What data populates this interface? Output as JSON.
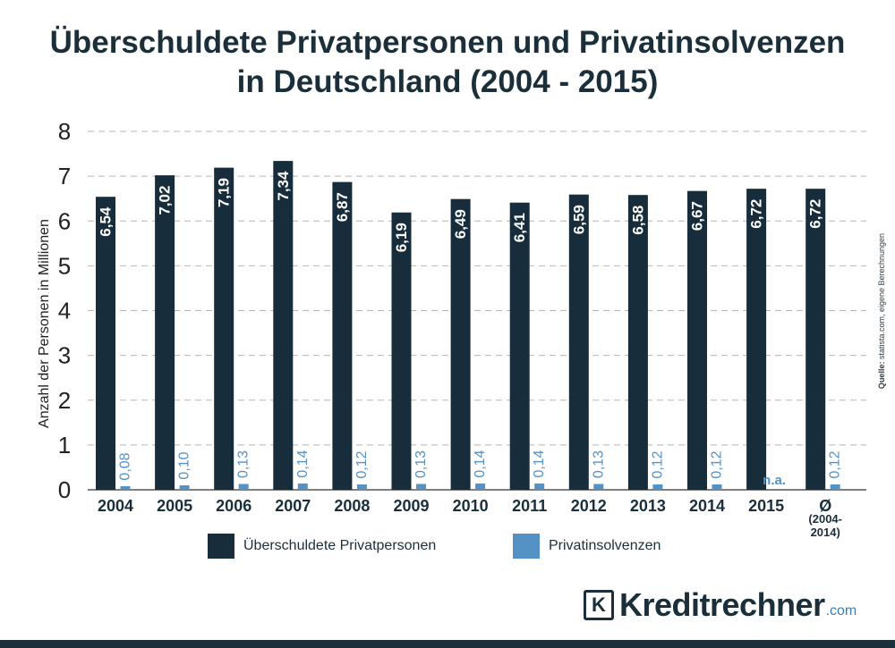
{
  "title_line1": "Überschuldete Privatpersonen und Privatinsolvenzen",
  "title_line2": "in Deutschland (2004 - 2015)",
  "source_label": "Quelle:",
  "source_text": "statista.com, eigene Berechnungen",
  "brand": {
    "name": "Kreditrechner",
    "tld": ".com",
    "logo": "K"
  },
  "colors": {
    "dark": "#172d3b",
    "light": "#5492c5",
    "grid": "#b5b5b5",
    "text": "#1b2f3b"
  },
  "chart_data": {
    "type": "bar",
    "ylabel": "Anzahl der Personen in Millionen",
    "ylim": [
      0,
      8
    ],
    "yticks": [
      "0",
      "1",
      "2",
      "3",
      "4",
      "5",
      "6",
      "7",
      "8"
    ],
    "categories": [
      [
        "2004"
      ],
      [
        "2005"
      ],
      [
        "2006"
      ],
      [
        "2007"
      ],
      [
        "2008"
      ],
      [
        "2009"
      ],
      [
        "2010"
      ],
      [
        "2011"
      ],
      [
        "2012"
      ],
      [
        "2013"
      ],
      [
        "2014"
      ],
      [
        "2015"
      ],
      [
        "Ø",
        "(2004-",
        "2014)"
      ]
    ],
    "series": [
      {
        "name": "Überschuldete Privatpersonen",
        "color": "#172d3b",
        "values": [
          6.54,
          7.02,
          7.19,
          7.34,
          6.87,
          6.19,
          6.49,
          6.41,
          6.59,
          6.58,
          6.67,
          6.72,
          6.72
        ],
        "labels": [
          "6,54",
          "7,02",
          "7,19",
          "7,34",
          "6,87",
          "6,19",
          "6,49",
          "6,41",
          "6,59",
          "6,58",
          "6,67",
          "6,72",
          "6,72"
        ]
      },
      {
        "name": "Privatinsolvenzen",
        "color": "#5492c5",
        "values": [
          0.08,
          0.1,
          0.13,
          0.14,
          0.12,
          0.13,
          0.14,
          0.14,
          0.13,
          0.12,
          0.12,
          null,
          0.12
        ],
        "labels": [
          "0,08",
          "0,10",
          "0,13",
          "0,14",
          "0,12",
          "0,13",
          "0,14",
          "0,14",
          "0,13",
          "0,12",
          "0,12",
          "n.a.",
          "0,12"
        ]
      }
    ]
  }
}
